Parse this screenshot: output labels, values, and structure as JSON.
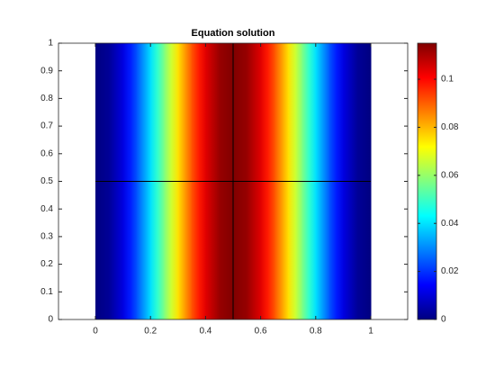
{
  "chart_data": {
    "type": "heatmap",
    "title": "Equation solution",
    "x": [
      0,
      0.05,
      0.1,
      0.15,
      0.2,
      0.25,
      0.3,
      0.35,
      0.4,
      0.45,
      0.5,
      0.55,
      0.6,
      0.65,
      0.7,
      0.75,
      0.8,
      0.85,
      0.9,
      0.95,
      1
    ],
    "values": [
      0,
      0.0028,
      0.011,
      0.0237,
      0.0397,
      0.0575,
      0.0753,
      0.0913,
      0.104,
      0.1122,
      0.115,
      0.1122,
      0.104,
      0.0913,
      0.0753,
      0.0575,
      0.0397,
      0.0237,
      0.011,
      0.0028,
      0
    ],
    "xlim": [
      -0.134,
      1.134
    ],
    "xticks": [
      0,
      0.2,
      0.4,
      0.6,
      0.8,
      1
    ],
    "ylim": [
      0,
      1
    ],
    "yticks": [
      0,
      0.1,
      0.2,
      0.3,
      0.4,
      0.5,
      0.6,
      0.7,
      0.8,
      0.9,
      1
    ],
    "colormap": "jet",
    "clim": [
      0,
      0.115
    ],
    "cticks": [
      0,
      0.02,
      0.04,
      0.06,
      0.08,
      0.1
    ]
  }
}
